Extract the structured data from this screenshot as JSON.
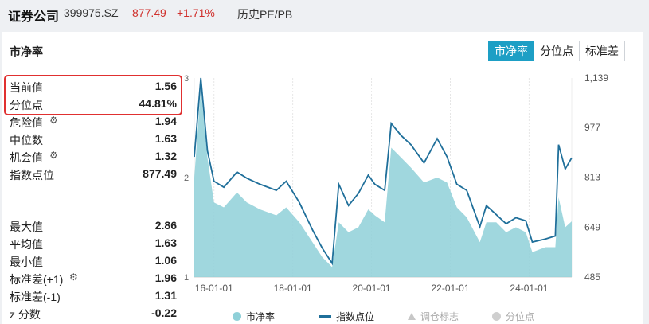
{
  "header": {
    "name": "证券公司",
    "code": "399975.SZ",
    "price": "877.49",
    "change": "+1.71%",
    "subtitle": "历史PE/PB"
  },
  "card": {
    "title": "市净率",
    "tabs": [
      "市净率",
      "分位点",
      "标准差"
    ]
  },
  "stats": [
    {
      "label": "当前值",
      "value": "1.56",
      "gear": false
    },
    {
      "label": "分位点",
      "value": "44.81%",
      "gear": false
    },
    {
      "label": "危险值",
      "value": "1.94",
      "gear": true
    },
    {
      "label": "中位数",
      "value": "1.63",
      "gear": false
    },
    {
      "label": "机会值",
      "value": "1.32",
      "gear": true
    },
    {
      "label": "指数点位",
      "value": "877.49",
      "gear": false
    },
    {
      "label": "最大值",
      "value": "2.86",
      "gear": false
    },
    {
      "label": "平均值",
      "value": "1.63",
      "gear": false
    },
    {
      "label": "最小值",
      "value": "1.06",
      "gear": false
    },
    {
      "label": "标准差(+1)",
      "value": "1.96",
      "gear": true
    },
    {
      "label": "标准差(-1)",
      "value": "1.31",
      "gear": false
    },
    {
      "label": "z 分数",
      "value": "-0.22",
      "gear": false
    }
  ],
  "colors": {
    "accent": "#1d9fc5",
    "up": "#d0312d",
    "area": "#8fd0d8",
    "line": "#1f6f9a",
    "highlight": "#e03030"
  },
  "chart_data": {
    "type": "area",
    "x_ticks": [
      "16-01-01",
      "18-01-01",
      "20-01-01",
      "22-01-01",
      "24-01-01"
    ],
    "left_axis": {
      "ticks": [
        "3",
        "2",
        "1"
      ],
      "ylim": [
        1,
        3
      ]
    },
    "right_axis": {
      "ticks": [
        "1,139",
        "977",
        "813",
        "649",
        "485"
      ],
      "ylim": [
        485,
        1139
      ]
    },
    "xlim": [
      "2015-07",
      "2025-02"
    ],
    "series": [
      {
        "name": "市净率",
        "axis": "left",
        "x": [
          "2015-07",
          "2015-09",
          "2015-11",
          "2016-01",
          "2016-04",
          "2016-08",
          "2016-11",
          "2017-03",
          "2017-08",
          "2017-11",
          "2018-03",
          "2018-07",
          "2018-10",
          "2019-01",
          "2019-03",
          "2019-06",
          "2019-09",
          "2019-12",
          "2020-02",
          "2020-05",
          "2020-07",
          "2020-10",
          "2021-01",
          "2021-05",
          "2021-09",
          "2021-12",
          "2022-03",
          "2022-06",
          "2022-10",
          "2022-12",
          "2023-03",
          "2023-06",
          "2023-09",
          "2023-12",
          "2024-02",
          "2024-06",
          "2024-09",
          "2024-10",
          "2024-12",
          "2025-02"
        ],
        "values": [
          2.0,
          2.9,
          2.2,
          1.75,
          1.7,
          1.85,
          1.75,
          1.68,
          1.62,
          1.7,
          1.55,
          1.35,
          1.2,
          1.1,
          1.55,
          1.45,
          1.5,
          1.68,
          1.62,
          1.55,
          2.3,
          2.2,
          2.1,
          1.95,
          2.0,
          1.95,
          1.7,
          1.6,
          1.35,
          1.55,
          1.55,
          1.45,
          1.5,
          1.45,
          1.25,
          1.3,
          1.3,
          1.8,
          1.5,
          1.56
        ]
      },
      {
        "name": "指数点位",
        "axis": "right",
        "x": [
          "2015-07",
          "2015-09",
          "2015-11",
          "2016-01",
          "2016-04",
          "2016-08",
          "2016-11",
          "2017-03",
          "2017-08",
          "2017-11",
          "2018-03",
          "2018-07",
          "2018-10",
          "2019-01",
          "2019-03",
          "2019-06",
          "2019-09",
          "2019-12",
          "2020-02",
          "2020-05",
          "2020-07",
          "2020-10",
          "2021-01",
          "2021-05",
          "2021-09",
          "2021-12",
          "2022-03",
          "2022-06",
          "2022-10",
          "2022-12",
          "2023-03",
          "2023-06",
          "2023-09",
          "2023-12",
          "2024-02",
          "2024-06",
          "2024-09",
          "2024-10",
          "2024-12",
          "2025-02"
        ],
        "values": [
          880,
          1139,
          900,
          800,
          780,
          830,
          810,
          790,
          770,
          800,
          730,
          640,
          580,
          530,
          790,
          720,
          760,
          820,
          790,
          770,
          990,
          950,
          920,
          860,
          940,
          880,
          790,
          770,
          650,
          720,
          690,
          660,
          680,
          670,
          600,
          610,
          620,
          920,
          840,
          877
        ]
      }
    ],
    "legend": [
      "市净率",
      "指数点位",
      "调仓标志",
      "分位点"
    ],
    "legend_position": "bottom",
    "grid": "vertical"
  }
}
